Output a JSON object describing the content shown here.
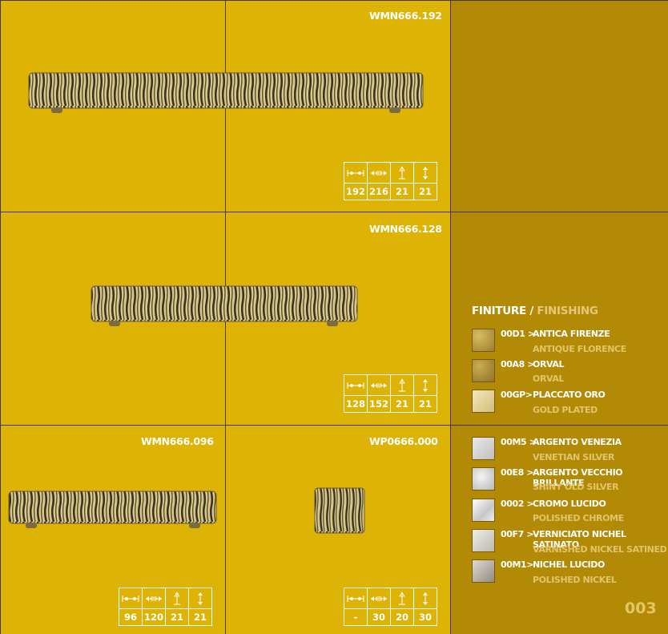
{
  "products": [
    {
      "code": "WMN666.192",
      "dims": [
        "192",
        "216",
        "21",
        "21"
      ]
    },
    {
      "code": "WMN666.128",
      "dims": [
        "128",
        "152",
        "21",
        "21"
      ]
    },
    {
      "code": "WMN666.096",
      "dims": [
        "96",
        "120",
        "21",
        "21"
      ]
    },
    {
      "code": "WP0666.000",
      "dims": [
        "-",
        "30",
        "20",
        "30"
      ]
    }
  ],
  "finishes_title": {
    "it": "FINITURE /",
    "en": "FINISHING"
  },
  "finishes": [
    {
      "code": "00D1 >",
      "name": "ANTICA FIRENZE",
      "name_en": "ANTIQUE FLORENCE",
      "color": "#b99a3c"
    },
    {
      "code": "00A8 >",
      "name": "ORVAL",
      "name_en": "ORVAL",
      "color": "#a98d3a"
    },
    {
      "code": "00GP>",
      "name": "PLACCATO ORO",
      "name_en": "GOLD PLATED",
      "color": "#e8d49a"
    },
    {
      "code": "00M5 >",
      "name": "ARGENTO VENEZIA",
      "name_en": "VENETIAN SILVER",
      "color": "#cfcfcf"
    },
    {
      "code": "00E8 >",
      "name": "ARGENTO VECCHIO BRILLANTE",
      "name_en": "SHINY OLD SILVER",
      "color": "#d8d8d8"
    },
    {
      "code": "0002 >",
      "name": "CROMO LUCIDO",
      "name_en": "POLISHED CHROME",
      "color": "#e3e3e3"
    },
    {
      "code": "00F7 >",
      "name": "VERNICIATO NICHEL SATINATO",
      "name_en": "VARNISHED NICKEL SATINED",
      "color": "#d6d3cc"
    },
    {
      "code": "00M1>",
      "name": "NICHEL LUCIDO",
      "name_en": "POLISHED NICKEL",
      "color": "#bdbab4"
    }
  ],
  "page_number": "003"
}
